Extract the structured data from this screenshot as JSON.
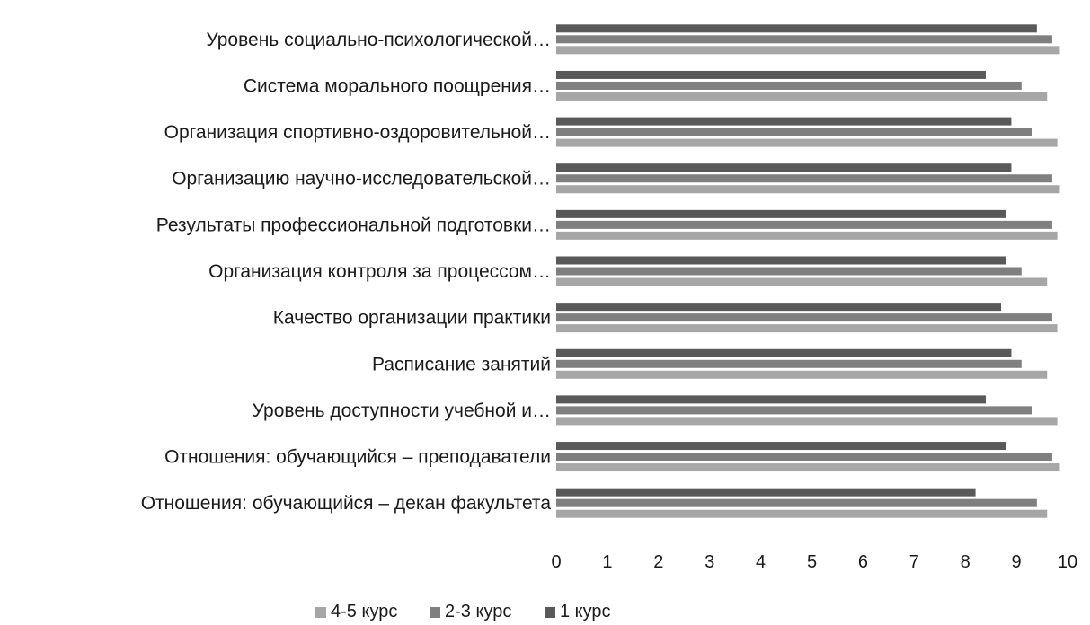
{
  "chart_data": {
    "type": "bar",
    "orientation": "horizontal",
    "categories": [
      "Уровень социально-психологической…",
      "Система морального поощрения…",
      "Организация спортивно-оздоровительной…",
      "Организацию научно-исследовательской…",
      "Результаты профессиональной подготовки…",
      "Организация контроля за процессом…",
      "Качество организации практики",
      "Расписание занятий",
      "Уровень доступности учебной и…",
      "Отношения: обучающийся – преподаватели",
      "Отношения: обучающийся – декан факультета"
    ],
    "series": [
      {
        "name": "4-5 курс",
        "color": "#a6a6a6",
        "values": [
          9.85,
          9.6,
          9.8,
          9.85,
          9.8,
          9.6,
          9.8,
          9.6,
          9.8,
          9.85,
          9.6
        ]
      },
      {
        "name": "2-3 курс",
        "color": "#7f7f7f",
        "values": [
          9.7,
          9.1,
          9.3,
          9.7,
          9.7,
          9.1,
          9.7,
          9.1,
          9.3,
          9.7,
          9.4
        ]
      },
      {
        "name": "1 курс",
        "color": "#595959",
        "values": [
          9.4,
          8.4,
          8.9,
          8.9,
          8.8,
          8.8,
          8.7,
          8.9,
          8.4,
          8.8,
          8.2
        ]
      }
    ],
    "xticks": [
      "0",
      "1",
      "2",
      "3",
      "4",
      "5",
      "6",
      "7",
      "8",
      "9",
      "10"
    ],
    "xlim": [
      0,
      10
    ],
    "grid": false,
    "legend": "bottom",
    "title": "",
    "xlabel": "",
    "ylabel": ""
  }
}
